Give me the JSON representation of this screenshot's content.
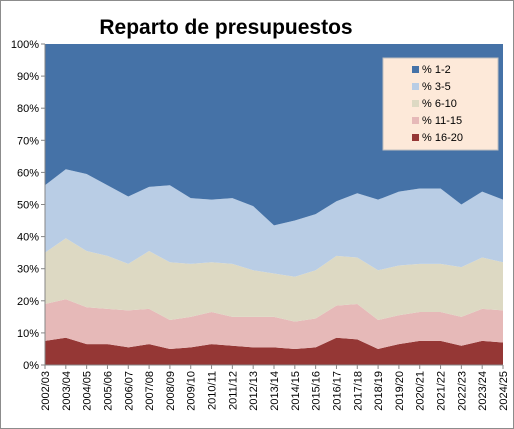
{
  "chart_data": {
    "type": "area",
    "stacked": true,
    "percent_stacked": true,
    "title": "Reparto de presupuestos",
    "ylim": [
      0,
      100
    ],
    "y_tick_labels": [
      "0%",
      "10%",
      "20%",
      "30%",
      "40%",
      "50%",
      "60%",
      "70%",
      "80%",
      "90%",
      "100%"
    ],
    "categories": [
      "2002/03",
      "2003/04",
      "2004/05",
      "2005/06",
      "2006/07",
      "2007/08",
      "2008/09",
      "2009/10",
      "2010/11",
      "2011/12",
      "2012/13",
      "2013/14",
      "2014/15",
      "2015/16",
      "2016/17",
      "2017/18",
      "2018/19",
      "2019/20",
      "2020/21",
      "2021/22",
      "2022/23",
      "2023/24",
      "2024/25"
    ],
    "series": [
      {
        "name": "% 16-20",
        "color": "#953735",
        "values": [
          7.5,
          8.5,
          6.5,
          6.5,
          5.5,
          6.5,
          5.0,
          5.5,
          6.5,
          6.0,
          5.5,
          5.5,
          5.0,
          5.5,
          8.5,
          8.0,
          5.0,
          6.5,
          7.5,
          7.5,
          6.0,
          7.5,
          7.0
        ]
      },
      {
        "name": "% 11-15",
        "color": "#e6b9b8",
        "values": [
          11.5,
          12.0,
          11.5,
          11.0,
          11.5,
          11.0,
          9.0,
          9.5,
          10.0,
          9.0,
          9.5,
          9.5,
          8.5,
          9.0,
          10.0,
          11.0,
          9.0,
          9.0,
          9.0,
          9.0,
          9.0,
          10.0,
          10.0
        ]
      },
      {
        "name": "% 6-10",
        "color": "#ddd9c3",
        "values": [
          16.0,
          19.0,
          17.5,
          16.5,
          14.5,
          18.0,
          18.0,
          16.5,
          15.5,
          16.5,
          14.5,
          13.5,
          14.0,
          15.0,
          15.5,
          14.5,
          15.5,
          15.5,
          15.0,
          15.0,
          15.5,
          16.0,
          15.0
        ]
      },
      {
        "name": "% 3-5",
        "color": "#b9cde5",
        "values": [
          21.0,
          21.5,
          24.0,
          22.0,
          21.0,
          20.0,
          24.0,
          20.5,
          19.5,
          20.5,
          20.0,
          15.0,
          17.5,
          17.5,
          17.0,
          20.0,
          22.0,
          23.0,
          23.5,
          23.5,
          19.5,
          20.5,
          19.5
        ]
      },
      {
        "name": "% 1-2",
        "color": "#4572a7",
        "values": [
          44.0,
          39.0,
          40.5,
          44.0,
          47.5,
          44.5,
          44.0,
          48.0,
          48.5,
          48.0,
          50.5,
          56.5,
          55.0,
          53.0,
          49.0,
          46.5,
          48.5,
          46.0,
          45.0,
          45.0,
          50.0,
          46.0,
          48.5
        ]
      }
    ],
    "legend_order": [
      "% 1-2",
      "% 3-5",
      "% 6-10",
      "% 11-15",
      "% 16-20"
    ],
    "legend_position": "top-right",
    "legend_background": "#fde9d9",
    "grid": false
  }
}
